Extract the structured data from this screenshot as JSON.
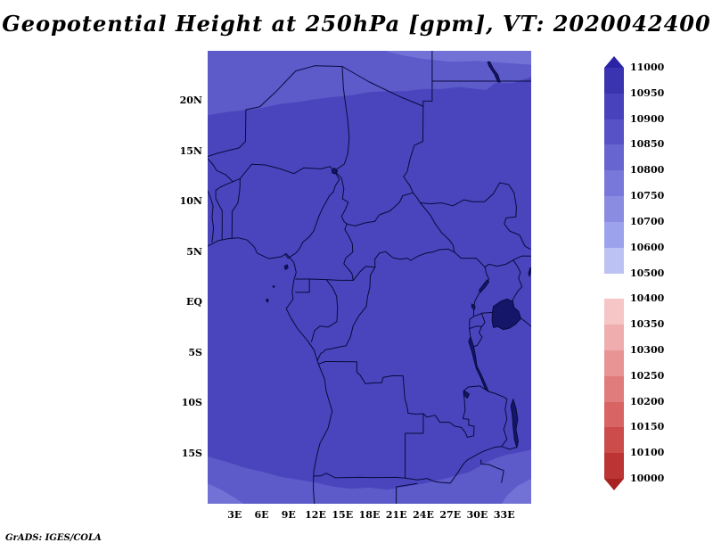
{
  "title": "Geopotential Height at 250hPa [gpm], VT: 2020042400",
  "attribution": "GrADS: IGES/COLA",
  "chart_data": {
    "type": "heatmap",
    "subtype": "filled-contour-map",
    "variable": "Geopotential Height",
    "level": "250hPa",
    "units": "gpm",
    "valid_time": "2020042400",
    "title": "Geopotential Height at 250hPa [gpm], VT: 2020042400",
    "lon_range": [
      0,
      36
    ],
    "lat_range": [
      -20,
      25
    ],
    "x_ticks": [
      {
        "label": "3E",
        "lon": 3
      },
      {
        "label": "6E",
        "lon": 6
      },
      {
        "label": "9E",
        "lon": 9
      },
      {
        "label": "12E",
        "lon": 12
      },
      {
        "label": "15E",
        "lon": 15
      },
      {
        "label": "18E",
        "lon": 18
      },
      {
        "label": "21E",
        "lon": 21
      },
      {
        "label": "24E",
        "lon": 24
      },
      {
        "label": "27E",
        "lon": 27
      },
      {
        "label": "30E",
        "lon": 30
      },
      {
        "label": "33E",
        "lon": 33
      }
    ],
    "y_ticks": [
      {
        "label": "20N",
        "lat": 20
      },
      {
        "label": "15N",
        "lat": 15
      },
      {
        "label": "10N",
        "lat": 10
      },
      {
        "label": "5N",
        "lat": 5
      },
      {
        "label": "EQ",
        "lat": 0
      },
      {
        "label": "5S",
        "lat": -5
      },
      {
        "label": "10S",
        "lat": -10
      },
      {
        "label": "15S",
        "lat": -15
      }
    ],
    "colorbar": {
      "orientation": "vertical",
      "arrows": "both",
      "levels_top_to_bottom": [
        11000,
        10950,
        10900,
        10850,
        10800,
        10750,
        10700,
        10600,
        10500,
        10400,
        10350,
        10300,
        10250,
        10200,
        10150,
        10100,
        10000
      ],
      "colors_top_to_bottom": [
        "#2a23a6",
        "#3b34b0",
        "#4843bc",
        "#5753c6",
        "#6765d0",
        "#7878da",
        "#8a8ce2",
        "#9da2ec",
        "#bdc2f4",
        "#ffffff",
        "#f6c6c6",
        "#f0adad",
        "#e89494",
        "#e07c7c",
        "#d86464",
        "#cc4c4c",
        "#bc3434",
        "#a82222"
      ]
    },
    "map_colors": {
      "base": "#4a45bd",
      "band_light": "#5d5aca",
      "band_lighter": "#7272d6",
      "border": "#0a0a3c",
      "lake": "#15156a"
    },
    "field_summary": "Nearly uniform height field over central Africa: interior ~10850-10900 gpm; slightly lower bands (~10800-10850 gpm) along the northern (Sahara) edge and the far southern edge, lowest slivers at the extreme NE/SW/SE corners.",
    "contour_regions": [
      {
        "name": "north-low-band",
        "band": "10800-10850",
        "color_key": "band_light",
        "polygon": [
          [
            0,
            25.3
          ],
          [
            36.3,
            25.3
          ],
          [
            36.3,
            22.5
          ],
          [
            34,
            21.8
          ],
          [
            32,
            21.8
          ],
          [
            31,
            21.1
          ],
          [
            29,
            21.3
          ],
          [
            28,
            21.4
          ],
          [
            26,
            21.2
          ],
          [
            24,
            21.2
          ],
          [
            22,
            21.0
          ],
          [
            20,
            21.0
          ],
          [
            18,
            20.9
          ],
          [
            16,
            20.6
          ],
          [
            14,
            20.4
          ],
          [
            12,
            20.2
          ],
          [
            10,
            19.9
          ],
          [
            8,
            19.7
          ],
          [
            6,
            19.3
          ],
          [
            4,
            19.1
          ],
          [
            2,
            18.9
          ],
          [
            0,
            18.6
          ]
        ]
      },
      {
        "name": "north-lower-sliver",
        "band": "10750-10800",
        "color_key": "band_lighter",
        "polygon": [
          [
            20,
            25.3
          ],
          [
            36.3,
            25.3
          ],
          [
            36.3,
            23.6
          ],
          [
            33,
            23.8
          ],
          [
            30,
            24.0
          ],
          [
            27,
            23.9
          ],
          [
            24,
            24.2
          ],
          [
            22,
            24.5
          ],
          [
            20,
            24.9
          ]
        ]
      },
      {
        "name": "south-low-band",
        "band": "10800-10850",
        "color_key": "band_light",
        "polygon": [
          [
            0,
            -20.3
          ],
          [
            36.3,
            -20.3
          ],
          [
            36.3,
            -14.6
          ],
          [
            34,
            -15.0
          ],
          [
            33,
            -15.2
          ],
          [
            32,
            -15.5
          ],
          [
            31,
            -15.9
          ],
          [
            30,
            -16.4
          ],
          [
            29,
            -16.9
          ],
          [
            28,
            -17.1
          ],
          [
            26,
            -17.6
          ],
          [
            24,
            -18.0
          ],
          [
            22,
            -18.3
          ],
          [
            20,
            -18.6
          ],
          [
            18,
            -18.4
          ],
          [
            16,
            -18.5
          ],
          [
            14,
            -18.3
          ],
          [
            12,
            -17.9
          ],
          [
            10,
            -17.6
          ],
          [
            8,
            -17.3
          ],
          [
            6,
            -16.8
          ],
          [
            4,
            -16.4
          ],
          [
            2,
            -15.8
          ],
          [
            0,
            -15.3
          ]
        ]
      },
      {
        "name": "southwest-corner",
        "band": "10750-10800",
        "color_key": "band_lighter",
        "polygon": [
          [
            0,
            -20.3
          ],
          [
            4.5,
            -20.3
          ],
          [
            3,
            -19.4
          ],
          [
            1.5,
            -18.6
          ],
          [
            0,
            -18.0
          ]
        ]
      },
      {
        "name": "southeast-corner",
        "band": "10750-10800",
        "color_key": "band_lighter",
        "polygon": [
          [
            32.5,
            -20.3
          ],
          [
            36.3,
            -20.3
          ],
          [
            36.3,
            -17.4
          ],
          [
            34.5,
            -18.2
          ],
          [
            33.3,
            -19.2
          ]
        ]
      }
    ]
  }
}
